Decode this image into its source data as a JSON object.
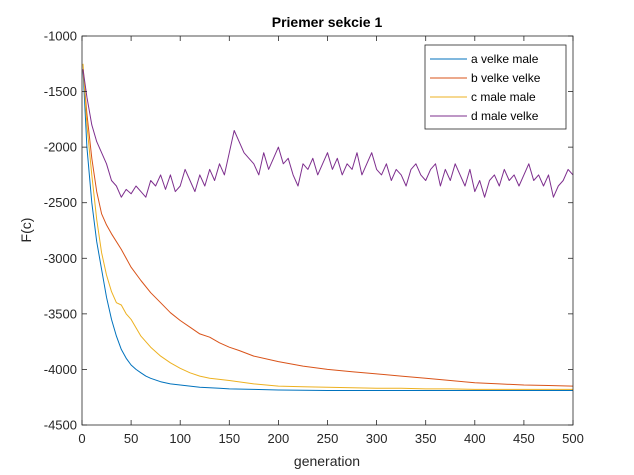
{
  "chart_data": {
    "type": "line",
    "title": "Priemer sekcie 1",
    "xlabel": "generation",
    "ylabel": "F(c)",
    "xlim": [
      0,
      500
    ],
    "ylim": [
      -4500,
      -1000
    ],
    "xticks": [
      "0",
      "50",
      "100",
      "150",
      "200",
      "250",
      "300",
      "350",
      "400",
      "450",
      "500"
    ],
    "yticks": [
      "-1000",
      "-1500",
      "-2000",
      "-2500",
      "-3000",
      "-3500",
      "-4000",
      "-4500"
    ],
    "grid": false,
    "legend_position": "top-right",
    "series": [
      {
        "name": "a velke male",
        "color": "#0072BD",
        "x": [
          1,
          5,
          10,
          15,
          20,
          25,
          30,
          35,
          40,
          45,
          50,
          55,
          60,
          65,
          70,
          80,
          90,
          100,
          110,
          120,
          130,
          140,
          150,
          175,
          200,
          250,
          300,
          350,
          400,
          450,
          500
        ],
        "y": [
          -1300,
          -2000,
          -2500,
          -2850,
          -3100,
          -3350,
          -3550,
          -3700,
          -3820,
          -3900,
          -3960,
          -4000,
          -4030,
          -4060,
          -4080,
          -4110,
          -4130,
          -4140,
          -4150,
          -4160,
          -4165,
          -4170,
          -4175,
          -4180,
          -4185,
          -4190,
          -4190,
          -4190,
          -4190,
          -4190,
          -4190
        ]
      },
      {
        "name": "b velke velke",
        "color": "#D95319",
        "x": [
          1,
          5,
          10,
          15,
          20,
          25,
          30,
          40,
          50,
          60,
          70,
          80,
          90,
          100,
          110,
          120,
          130,
          140,
          150,
          160,
          175,
          200,
          225,
          250,
          275,
          300,
          325,
          350,
          375,
          400,
          425,
          450,
          475,
          500
        ],
        "y": [
          -1300,
          -1700,
          -2100,
          -2400,
          -2600,
          -2700,
          -2780,
          -2920,
          -3080,
          -3200,
          -3310,
          -3400,
          -3490,
          -3560,
          -3620,
          -3680,
          -3710,
          -3760,
          -3800,
          -3830,
          -3880,
          -3930,
          -3970,
          -4000,
          -4020,
          -4040,
          -4060,
          -4080,
          -4100,
          -4120,
          -4130,
          -4140,
          -4145,
          -4150
        ]
      },
      {
        "name": "c male male",
        "color": "#EDB120",
        "x": [
          1,
          5,
          10,
          15,
          20,
          25,
          30,
          35,
          40,
          45,
          50,
          60,
          70,
          80,
          90,
          100,
          110,
          120,
          130,
          140,
          150,
          175,
          200,
          225,
          250,
          275,
          300,
          325,
          350,
          375,
          400,
          425,
          450,
          475,
          500
        ],
        "y": [
          -1250,
          -1800,
          -2250,
          -2650,
          -2950,
          -3150,
          -3300,
          -3400,
          -3420,
          -3500,
          -3550,
          -3700,
          -3800,
          -3880,
          -3940,
          -3990,
          -4030,
          -4060,
          -4080,
          -4090,
          -4100,
          -4130,
          -4150,
          -4155,
          -4160,
          -4165,
          -4170,
          -4170,
          -4175,
          -4175,
          -4180,
          -4180,
          -4180,
          -4180,
          -4180
        ]
      },
      {
        "name": "d male velke",
        "color": "#7E2F8E",
        "x": [
          1,
          5,
          10,
          15,
          20,
          25,
          30,
          35,
          40,
          45,
          50,
          55,
          60,
          65,
          70,
          75,
          80,
          85,
          90,
          95,
          100,
          105,
          110,
          115,
          120,
          125,
          130,
          135,
          140,
          145,
          150,
          155,
          160,
          165,
          170,
          175,
          180,
          185,
          190,
          195,
          200,
          205,
          210,
          215,
          220,
          225,
          230,
          235,
          240,
          245,
          250,
          255,
          260,
          265,
          270,
          275,
          280,
          285,
          290,
          295,
          300,
          305,
          310,
          315,
          320,
          325,
          330,
          335,
          340,
          345,
          350,
          355,
          360,
          365,
          370,
          375,
          380,
          385,
          390,
          395,
          400,
          405,
          410,
          415,
          420,
          425,
          430,
          435,
          440,
          445,
          450,
          455,
          460,
          465,
          470,
          475,
          480,
          485,
          490,
          495,
          500
        ],
        "y": [
          -1300,
          -1550,
          -1800,
          -1950,
          -2050,
          -2150,
          -2300,
          -2350,
          -2450,
          -2380,
          -2420,
          -2350,
          -2400,
          -2450,
          -2300,
          -2350,
          -2250,
          -2380,
          -2250,
          -2400,
          -2350,
          -2200,
          -2300,
          -2400,
          -2250,
          -2350,
          -2200,
          -2300,
          -2150,
          -2250,
          -2050,
          -1850,
          -1950,
          -2050,
          -2100,
          -2150,
          -2250,
          -2050,
          -2200,
          -2100,
          -2000,
          -2150,
          -2100,
          -2250,
          -2350,
          -2150,
          -2200,
          -2100,
          -2250,
          -2150,
          -2050,
          -2200,
          -2100,
          -2250,
          -2150,
          -2200,
          -2050,
          -2250,
          -2150,
          -2050,
          -2200,
          -2250,
          -2150,
          -2300,
          -2200,
          -2250,
          -2350,
          -2200,
          -2150,
          -2250,
          -2300,
          -2200,
          -2150,
          -2350,
          -2200,
          -2300,
          -2150,
          -2250,
          -2350,
          -2200,
          -2400,
          -2300,
          -2450,
          -2300,
          -2250,
          -2350,
          -2200,
          -2300,
          -2250,
          -2350,
          -2250,
          -2150,
          -2300,
          -2250,
          -2350,
          -2250,
          -2450,
          -2350,
          -2300,
          -2200,
          -2250
        ]
      }
    ]
  }
}
